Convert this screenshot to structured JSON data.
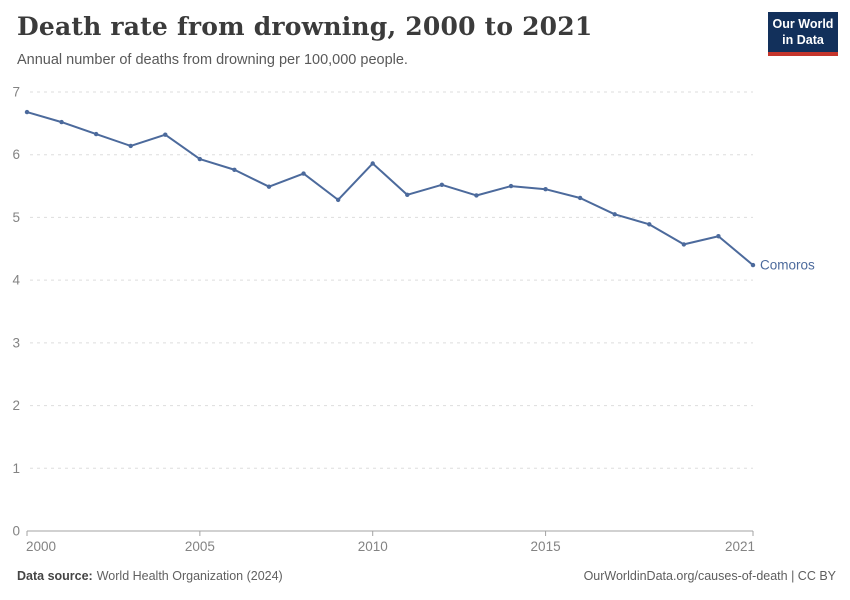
{
  "header": {
    "title": "Death rate from drowning, 2000 to 2021",
    "subtitle": "Annual number of deaths from drowning per 100,000 people.",
    "logo": {
      "line1": "Our World",
      "line2": "in Data"
    }
  },
  "footer": {
    "source_label": "Data source:",
    "source_value": "World Health Organization (2024)",
    "credit": "OurWorldinData.org/causes-of-death | CC BY"
  },
  "colors": {
    "line": "#4c6a9c",
    "grid": "#dddddd",
    "axis": "#a3a3a3",
    "tick_label": "#838383",
    "logo_bg": "#12305b",
    "logo_stripe": "#c5352c",
    "title": "#3b3b3b",
    "subtitle": "#595959"
  },
  "chart_data": {
    "type": "line",
    "title": "Death rate from drowning, 2000 to 2021",
    "subtitle": "Annual number of deaths from drowning per 100,000 people.",
    "xlabel": "",
    "ylabel": "",
    "xlim": [
      2000,
      2021
    ],
    "ylim": [
      0,
      7
    ],
    "yticks": [
      0,
      1,
      2,
      3,
      4,
      5,
      6,
      7
    ],
    "xticks": [
      2000,
      2005,
      2010,
      2015,
      2021
    ],
    "grid": "dashed-horizontal",
    "legend_position": "end-of-line-label",
    "series": [
      {
        "name": "Comoros",
        "x": [
          2000,
          2001,
          2002,
          2003,
          2004,
          2005,
          2006,
          2007,
          2008,
          2009,
          2010,
          2011,
          2012,
          2013,
          2014,
          2015,
          2016,
          2017,
          2018,
          2019,
          2020,
          2021
        ],
        "values": [
          6.68,
          6.52,
          6.33,
          6.14,
          6.32,
          5.93,
          5.76,
          5.49,
          5.7,
          5.28,
          5.86,
          5.36,
          5.52,
          5.35,
          5.5,
          5.45,
          5.31,
          5.05,
          4.89,
          4.57,
          4.7,
          4.24
        ]
      }
    ]
  }
}
